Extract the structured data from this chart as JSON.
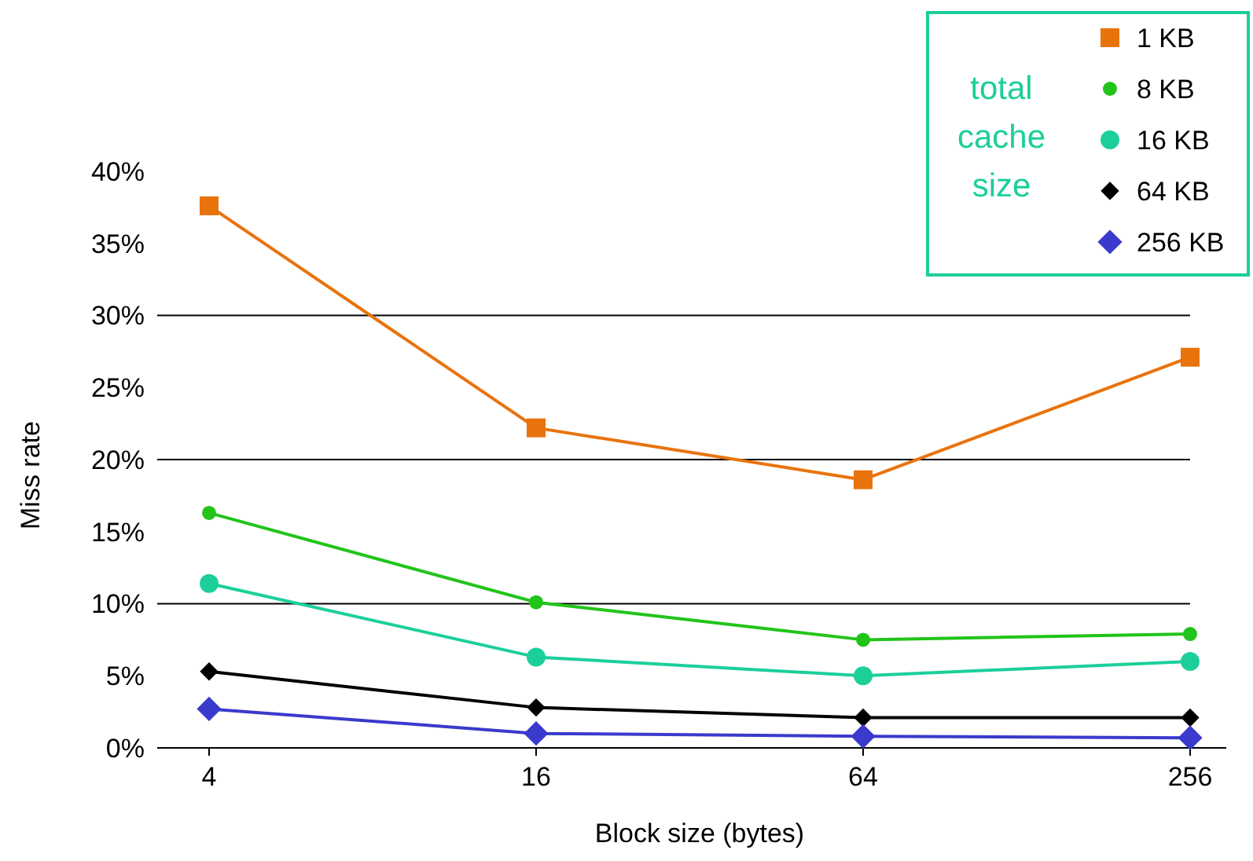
{
  "chart_data": {
    "type": "line",
    "xlabel": "Block size (bytes)",
    "ylabel": "Miss rate",
    "categories": [
      "4",
      "16",
      "64",
      "256"
    ],
    "ylim": [
      0,
      40
    ],
    "yticks": [
      {
        "value": 0,
        "label": "0%"
      },
      {
        "value": 5,
        "label": "5%"
      },
      {
        "value": 10,
        "label": "10%"
      },
      {
        "value": 15,
        "label": "15%"
      },
      {
        "value": 20,
        "label": "20%"
      },
      {
        "value": 25,
        "label": "25%"
      },
      {
        "value": 30,
        "label": "30%"
      },
      {
        "value": 35,
        "label": "35%"
      },
      {
        "value": 40,
        "label": "40%"
      }
    ],
    "ref_lines": [
      {
        "axis": "y",
        "value": 10,
        "color": "#000000"
      },
      {
        "axis": "y",
        "value": 20,
        "color": "#000000"
      },
      {
        "axis": "y",
        "value": 30,
        "color": "#000000"
      }
    ],
    "legend": "top right",
    "legend_title": "total cache size",
    "line_style": "solid",
    "series": [
      {
        "name": "1 KB",
        "color": "#e8730c",
        "marker": "square",
        "values": [
          37.6,
          22.2,
          18.6,
          27.1
        ]
      },
      {
        "name": "8 KB",
        "color": "#22c41a",
        "marker": "circle",
        "values": [
          16.3,
          10.1,
          7.5,
          7.9
        ]
      },
      {
        "name": "16 KB",
        "color": "#1ccf9a",
        "marker": "circle",
        "values": [
          11.4,
          6.3,
          5.0,
          6.0
        ]
      },
      {
        "name": "64 KB",
        "color": "#000000",
        "marker": "diamond",
        "values": [
          5.3,
          2.8,
          2.1,
          2.1
        ]
      },
      {
        "name": "256 KB",
        "color": "#3a3acc",
        "marker": "diamond",
        "values": [
          2.7,
          1.0,
          0.8,
          0.7
        ]
      }
    ]
  }
}
